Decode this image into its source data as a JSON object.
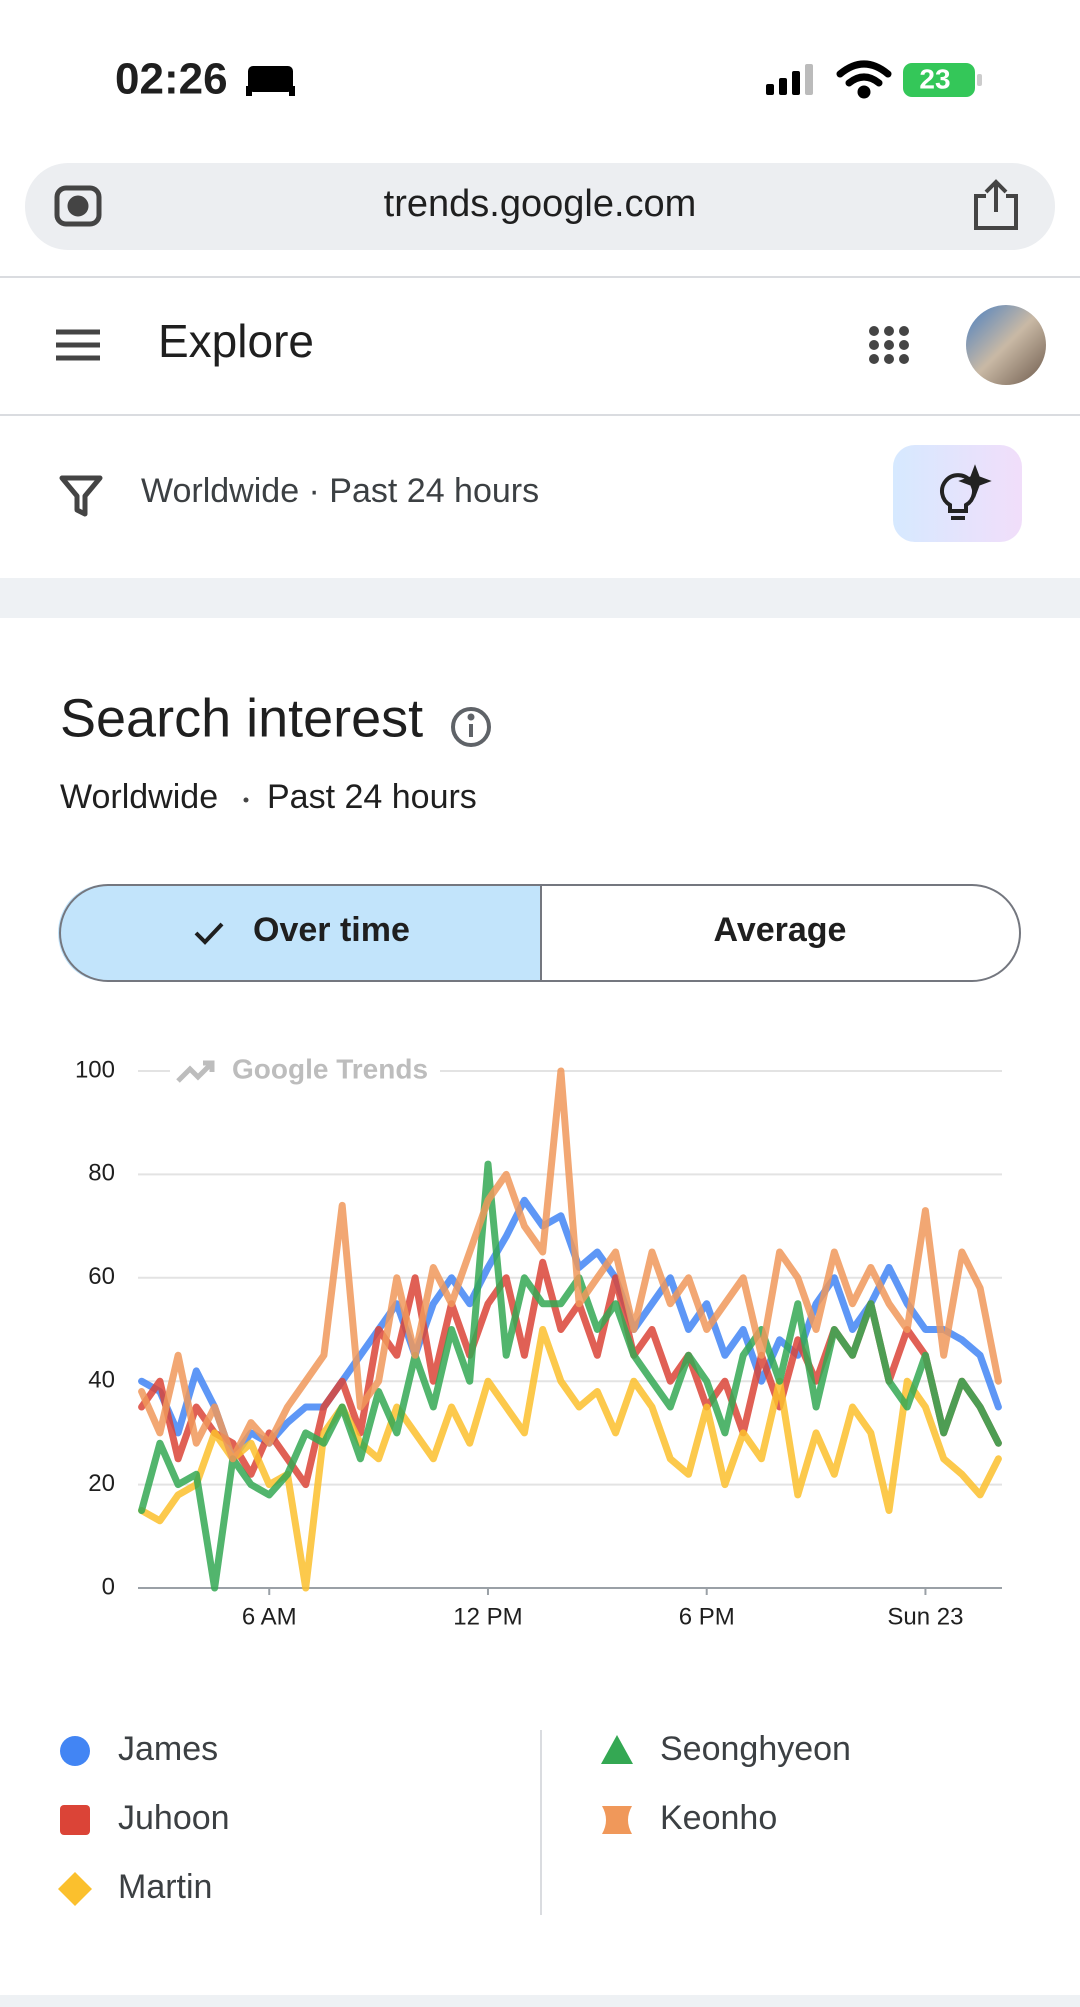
{
  "status_bar": {
    "time": "02:26",
    "battery": "23"
  },
  "browser": {
    "url": "trends.google.com"
  },
  "header": {
    "title": "Explore"
  },
  "filter": {
    "label": "Worldwide · Past 24 hours"
  },
  "section": {
    "title": "Search interest",
    "subtitle_location": "Worldwide",
    "subtitle_period": "Past 24 hours"
  },
  "toggle": {
    "options": [
      "Over time",
      "Average"
    ]
  },
  "chart_data": {
    "type": "line",
    "watermark": "Google Trends",
    "x": [
      2.5,
      3,
      3.5,
      4,
      4.5,
      5,
      5.5,
      6,
      6.5,
      7,
      7.5,
      8,
      8.5,
      9,
      9.5,
      10,
      10.5,
      11,
      11.5,
      12,
      12.5,
      13,
      13.5,
      14,
      14.5,
      15,
      15.5,
      16,
      16.5,
      17,
      17.5,
      18,
      18.5,
      19,
      19.5,
      20,
      20.5,
      21,
      21.5,
      22,
      22.5,
      23,
      23.5,
      24,
      24.5,
      25,
      25.5,
      26
    ],
    "xlim": [
      2.4,
      26.1
    ],
    "xticks": [
      {
        "value": 6,
        "label": "6 AM"
      },
      {
        "value": 12,
        "label": "12 PM"
      },
      {
        "value": 18,
        "label": "6 PM"
      },
      {
        "value": 24,
        "label": "Sun 23"
      }
    ],
    "ylim": [
      0,
      100
    ],
    "yticks": [
      0,
      20,
      40,
      60,
      80,
      100
    ],
    "grid": true,
    "series": [
      {
        "name": "James",
        "color": "#4285f4",
        "values": [
          40,
          38,
          30,
          42,
          35,
          25,
          30,
          28,
          32,
          35,
          35,
          40,
          45,
          50,
          55,
          45,
          55,
          60,
          55,
          62,
          68,
          75,
          70,
          72,
          62,
          65,
          60,
          50,
          55,
          60,
          50,
          55,
          45,
          50,
          40,
          48,
          45,
          55,
          60,
          50,
          55,
          62,
          55,
          50,
          50,
          48,
          45,
          35
        ]
      },
      {
        "name": "Juhoon",
        "color": "#db4437",
        "values": [
          35,
          40,
          25,
          35,
          30,
          28,
          22,
          30,
          25,
          20,
          35,
          40,
          30,
          50,
          45,
          60,
          40,
          55,
          45,
          55,
          60,
          45,
          63,
          50,
          55,
          45,
          60,
          45,
          50,
          40,
          45,
          35,
          40,
          30,
          45,
          35,
          48,
          40,
          50,
          45,
          55,
          40,
          50,
          45,
          30,
          40,
          35,
          28
        ]
      },
      {
        "name": "Martin",
        "color": "#fbc02d",
        "values": [
          15,
          13,
          18,
          20,
          30,
          25,
          28,
          20,
          22,
          0,
          30,
          35,
          28,
          25,
          35,
          30,
          25,
          35,
          28,
          40,
          35,
          30,
          50,
          40,
          35,
          38,
          30,
          40,
          35,
          25,
          22,
          35,
          20,
          30,
          25,
          40,
          18,
          30,
          22,
          35,
          30,
          15,
          40,
          35,
          25,
          22,
          18,
          25
        ]
      },
      {
        "name": "Seonghyeon",
        "color": "#34a853",
        "values": [
          15,
          28,
          20,
          22,
          0,
          25,
          20,
          18,
          22,
          30,
          28,
          35,
          25,
          38,
          30,
          45,
          35,
          50,
          40,
          82,
          45,
          60,
          55,
          55,
          60,
          50,
          55,
          45,
          40,
          35,
          45,
          40,
          30,
          45,
          50,
          40,
          55,
          35,
          50,
          45,
          55,
          40,
          35,
          45,
          30,
          40,
          35,
          28
        ]
      },
      {
        "name": "Keonho",
        "color": "#f0985a",
        "values": [
          38,
          30,
          45,
          28,
          35,
          25,
          32,
          28,
          35,
          40,
          45,
          74,
          35,
          40,
          60,
          45,
          62,
          55,
          65,
          75,
          80,
          70,
          65,
          100,
          55,
          60,
          65,
          50,
          65,
          55,
          60,
          50,
          55,
          60,
          45,
          65,
          60,
          50,
          65,
          55,
          62,
          55,
          50,
          73,
          45,
          65,
          58,
          40
        ]
      }
    ]
  }
}
